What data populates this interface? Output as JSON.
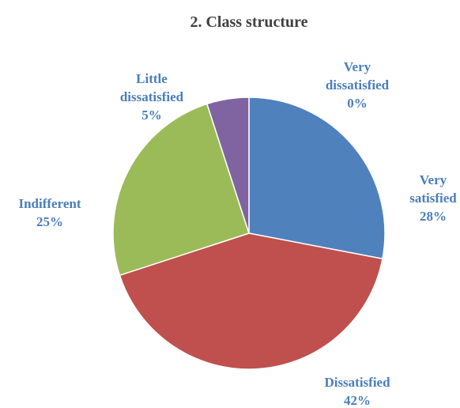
{
  "chart_data": {
    "type": "pie",
    "title": "2. Class structure",
    "categories": [
      "Very dissatisfied",
      "Very satisfied",
      "Dissatisfied",
      "Indifferent",
      "Little dissatisfied"
    ],
    "values": [
      0,
      28,
      42,
      25,
      5
    ],
    "value_labels": [
      "0%",
      "28%",
      "42%",
      "25%",
      "5%"
    ],
    "colors": [
      "#4bacc6",
      "#4f81bd",
      "#c0504d",
      "#9bbb59",
      "#8064a2"
    ]
  }
}
